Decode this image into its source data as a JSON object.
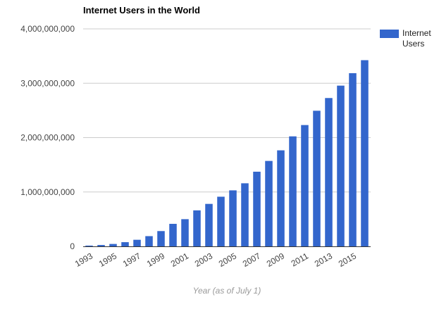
{
  "chart_data": {
    "type": "bar",
    "title": "Internet Users in the World",
    "xlabel": "Year (as of July 1)",
    "ylabel": "",
    "categories": [
      "1993",
      "1994",
      "1995",
      "1996",
      "1997",
      "1998",
      "1999",
      "2000",
      "2001",
      "2002",
      "2003",
      "2004",
      "2005",
      "2006",
      "2007",
      "2008",
      "2009",
      "2010",
      "2011",
      "2012",
      "2013",
      "2014",
      "2015",
      "2016"
    ],
    "x_tick_labels": [
      "1993",
      "1995",
      "1997",
      "1999",
      "2001",
      "2003",
      "2005",
      "2007",
      "2009",
      "2011",
      "2013",
      "2015"
    ],
    "series": [
      {
        "name": "Internet Users",
        "color": "#3366cc",
        "values": [
          14000000,
          25000000,
          44000000,
          77000000,
          121000000,
          188000000,
          281000000,
          414000000,
          500000000,
          662000000,
          781000000,
          913000000,
          1030000000,
          1160000000,
          1373000000,
          1571000000,
          1766000000,
          2023000000,
          2231000000,
          2494000000,
          2728000000,
          2956000000,
          3185000000,
          3424000000
        ]
      }
    ],
    "ylim": [
      0,
      4000000000
    ],
    "y_ticks": [
      0,
      1000000000,
      2000000000,
      3000000000,
      4000000000
    ],
    "y_tick_labels": [
      "0",
      "1,000,000,000",
      "2,000,000,000",
      "3,000,000,000",
      "4,000,000,000"
    ],
    "grid": true,
    "legend_position": "right"
  }
}
